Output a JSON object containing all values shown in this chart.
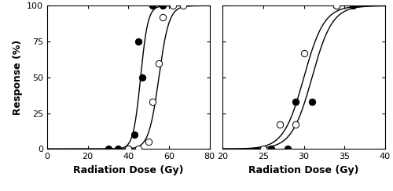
{
  "left_panel": {
    "xlabel": "Radiation Dose (Gy)",
    "ylabel": "Response (%)",
    "xlim": [
      0,
      80
    ],
    "ylim": [
      0,
      100
    ],
    "xticks": [
      0,
      20,
      40,
      60,
      80
    ],
    "yticks": [
      0,
      25,
      50,
      75,
      100
    ],
    "filled_points": [
      [
        30,
        0
      ],
      [
        35,
        0
      ],
      [
        40,
        0
      ],
      [
        43,
        10
      ],
      [
        45,
        75
      ],
      [
        47,
        50
      ],
      [
        52,
        100
      ],
      [
        57,
        100
      ]
    ],
    "open_points": [
      [
        40,
        0
      ],
      [
        45,
        0
      ],
      [
        50,
        5
      ],
      [
        52,
        33
      ],
      [
        55,
        60
      ],
      [
        57,
        92
      ],
      [
        62,
        100
      ],
      [
        67,
        100
      ]
    ],
    "filled_curve_params": {
      "x50": 46.0,
      "slope": 0.55
    },
    "open_curve_params": {
      "x50": 55.0,
      "slope": 0.4
    }
  },
  "right_panel": {
    "xlabel": "Radiation Dose (Gy)",
    "ylabel": "",
    "xlim": [
      20,
      40
    ],
    "ylim": [
      0,
      100
    ],
    "xticks": [
      20,
      25,
      30,
      35,
      40
    ],
    "yticks": [
      0,
      25,
      50,
      75,
      100
    ],
    "filled_points": [
      [
        26,
        0
      ],
      [
        28,
        0
      ],
      [
        29,
        33
      ],
      [
        31,
        33
      ],
      [
        34,
        100
      ],
      [
        36,
        100
      ]
    ],
    "open_points": [
      [
        25,
        0
      ],
      [
        27,
        17
      ],
      [
        29,
        17
      ],
      [
        30,
        67
      ],
      [
        34,
        100
      ]
    ],
    "filled_curve_params": {
      "x50": 30.0,
      "slope": 0.8
    },
    "open_curve_params": {
      "x50": 31.0,
      "slope": 0.8
    }
  },
  "marker_size": 6,
  "line_color": "black",
  "background_color": "white",
  "tick_fontsize": 8,
  "label_fontsize": 9,
  "label_fontweight": "bold"
}
